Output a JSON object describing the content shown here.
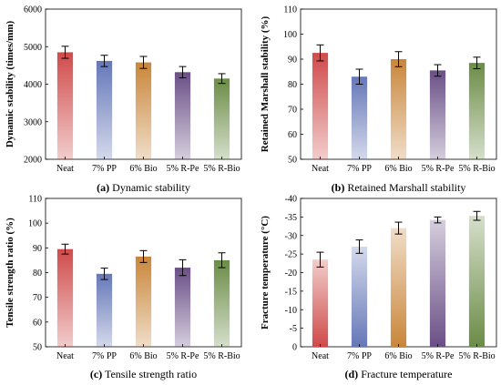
{
  "colors": {
    "neat": "#d04a4a",
    "pp": "#6577b8",
    "bio": "#c9863a",
    "rpe": "#6a4f86",
    "rbio": "#6b8c46"
  },
  "chart_data": [
    {
      "type": "bar",
      "title": "",
      "caption_letter": "(a)",
      "caption_text": " Dynamic stability",
      "xlabel": "",
      "ylabel": "Dynamic stability (times/mm)",
      "categories": [
        "Neat",
        "7% PP",
        "6% Bio",
        "5% R-Pe",
        "5% R-Bio"
      ],
      "values": [
        4850,
        4620,
        4580,
        4320,
        4150
      ],
      "errors": [
        160,
        150,
        160,
        150,
        130
      ],
      "ylim": [
        2000,
        6000
      ],
      "yticks": [
        2000,
        3000,
        4000,
        5000,
        6000
      ],
      "ytick_labels": [
        "2000",
        "3000",
        "4000",
        "5000",
        "6000"
      ]
    },
    {
      "type": "bar",
      "title": "",
      "caption_letter": "(b)",
      "caption_text": " Retained Marshall stability",
      "xlabel": "",
      "ylabel": "Retained Marshall stability (%)",
      "categories": [
        "Neat",
        "7% PP",
        "6% Bio",
        "5% R-Pe",
        "5% R-Bio"
      ],
      "values": [
        92.5,
        83,
        90,
        85.5,
        88.5
      ],
      "errors": [
        3.2,
        3.0,
        3.0,
        2.3,
        2.3
      ],
      "ylim": [
        50,
        110
      ],
      "yticks": [
        50,
        60,
        70,
        80,
        90,
        100,
        110
      ],
      "ytick_labels": [
        "50",
        "60",
        "70",
        "80",
        "90",
        "100",
        "110"
      ]
    },
    {
      "type": "bar",
      "title": "",
      "caption_letter": "(c)",
      "caption_text": " Tensile strength ratio",
      "xlabel": "",
      "ylabel": "Tensile strength ratio (%)",
      "categories": [
        "Neat",
        "7% PP",
        "6% Bio",
        "5% R-Pe",
        "5% R-Bio"
      ],
      "values": [
        89.5,
        79.5,
        86.5,
        82,
        85
      ],
      "errors": [
        2.0,
        2.3,
        2.4,
        3.2,
        3.0
      ],
      "ylim": [
        50,
        110
      ],
      "yticks": [
        50,
        60,
        70,
        80,
        90,
        100,
        110
      ],
      "ytick_labels": [
        "50",
        "60",
        "70",
        "80",
        "90",
        "100",
        "110"
      ]
    },
    {
      "type": "bar",
      "title": "",
      "caption_letter": "(d)",
      "caption_text": " Fracture temperature",
      "xlabel": "",
      "ylabel": "Fracture temperature (°C)",
      "categories": [
        "Neat",
        "7% PP",
        "6% Bio",
        "5% R-Pe",
        "5% R-Bio"
      ],
      "values": [
        -23.5,
        -27,
        -32,
        -34.2,
        -35.3
      ],
      "errors": [
        2.0,
        1.8,
        1.6,
        0.8,
        1.2
      ],
      "ylim": [
        0,
        -40
      ],
      "yticks": [
        0,
        -5,
        -10,
        -15,
        -20,
        -25,
        -30,
        -35,
        -40
      ],
      "ytick_labels": [
        "0",
        "-5",
        "-10",
        "-15",
        "-20",
        "-25",
        "-30",
        "-35",
        "-40"
      ]
    }
  ]
}
